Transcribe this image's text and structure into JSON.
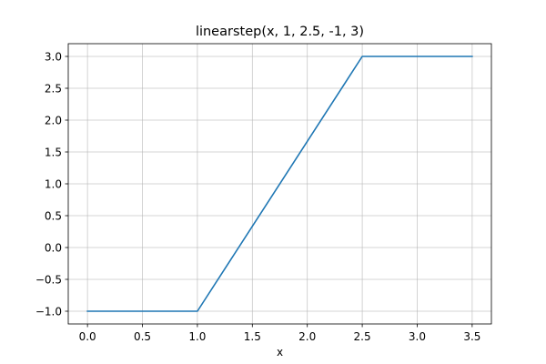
{
  "chart_data": {
    "type": "line",
    "title": "linearstep(x, 1, 2.5, -1, 3)",
    "xlabel": "x",
    "ylabel": "",
    "xlim": [
      -0.175,
      3.675
    ],
    "ylim": [
      -1.2,
      3.2
    ],
    "x_ticks": [
      0.0,
      0.5,
      1.0,
      1.5,
      2.0,
      2.5,
      3.0,
      3.5
    ],
    "x_tick_labels": [
      "0.0",
      "0.5",
      "1.0",
      "1.5",
      "2.0",
      "2.5",
      "3.0",
      "3.5"
    ],
    "y_ticks": [
      -1.0,
      -0.5,
      0.0,
      0.5,
      1.0,
      1.5,
      2.0,
      2.5,
      3.0
    ],
    "y_tick_labels": [
      "−1.0",
      "−0.5",
      "0.0",
      "0.5",
      "1.0",
      "1.5",
      "2.0",
      "2.5",
      "3.0"
    ],
    "grid": true,
    "series": [
      {
        "color": "#1f77b4",
        "x": [
          0.0,
          1.0,
          2.5,
          3.5
        ],
        "y": [
          -1.0,
          -1.0,
          3.0,
          3.0
        ]
      }
    ]
  }
}
